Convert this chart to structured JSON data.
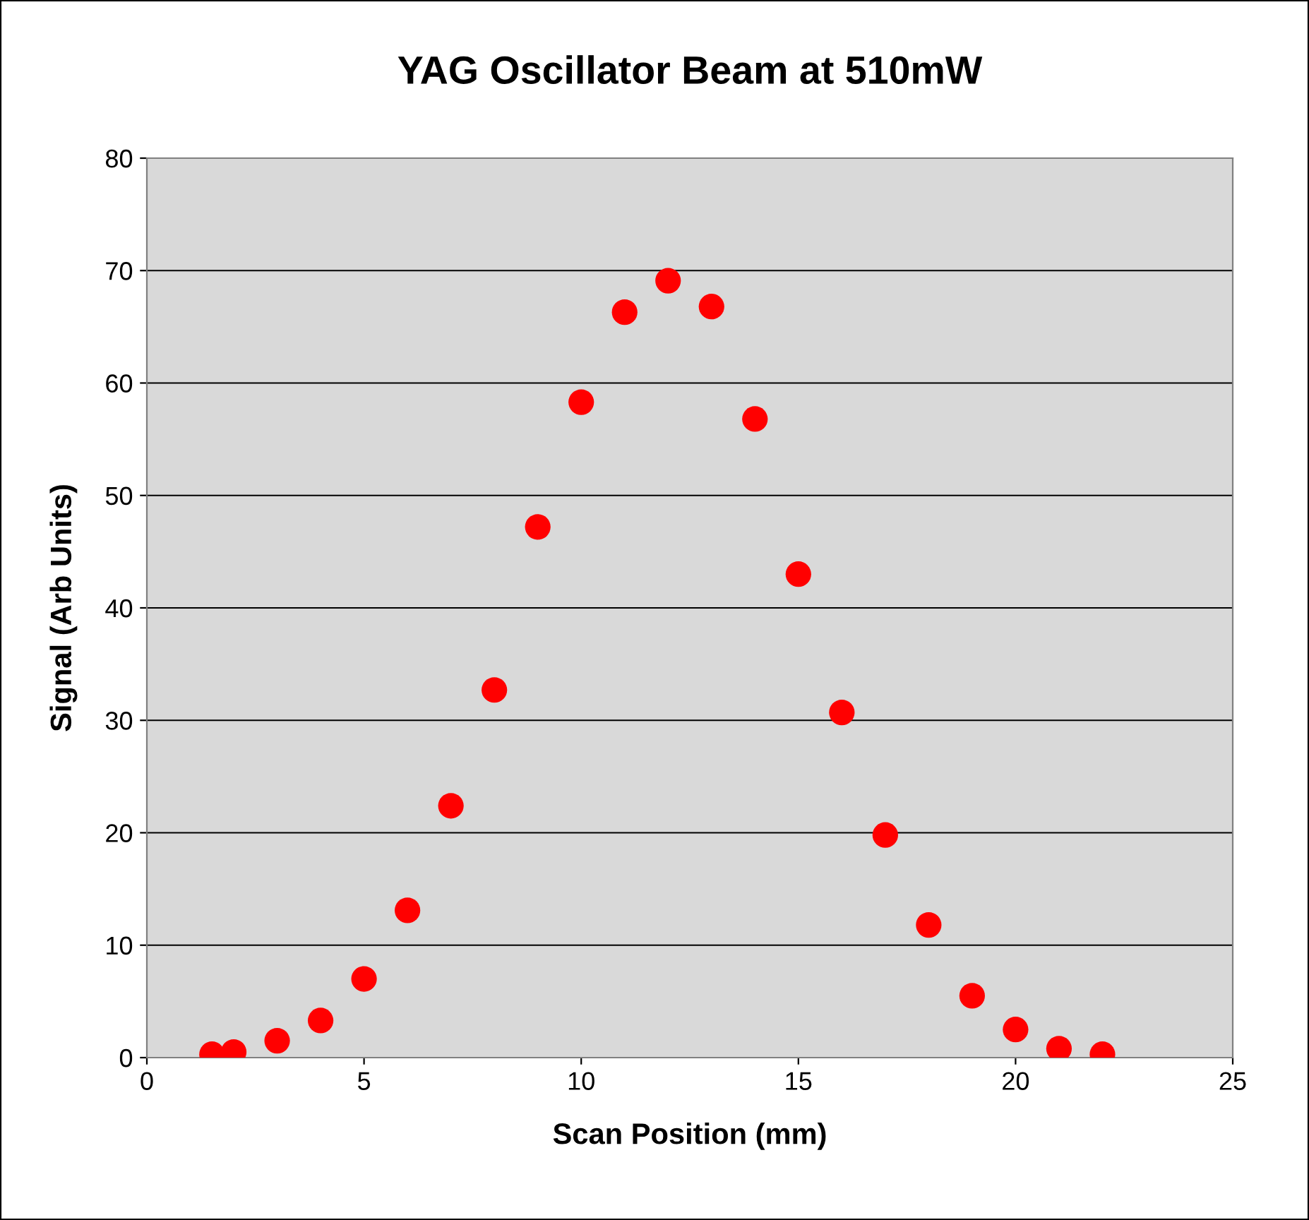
{
  "chart_data": {
    "type": "scatter",
    "title": "YAG Oscillator Beam at 510mW",
    "xlabel": "Scan Position (mm)",
    "ylabel": "Signal (Arb Units)",
    "x": [
      1.5,
      2,
      3,
      4,
      5,
      6,
      7,
      8,
      9,
      10,
      11,
      12,
      13,
      14,
      15,
      16,
      17,
      18,
      19,
      20,
      21,
      22
    ],
    "series": [
      {
        "color": "#ff0000",
        "values": [
          0.3,
          0.5,
          1.5,
          3.3,
          7.0,
          13.1,
          22.4,
          32.7,
          47.2,
          58.3,
          66.3,
          69.1,
          66.8,
          56.8,
          43.0,
          30.7,
          19.8,
          11.8,
          5.5,
          2.5,
          0.8,
          0.3
        ]
      }
    ],
    "xlim": [
      0,
      25
    ],
    "xticks": [
      0,
      5,
      10,
      15,
      20,
      25
    ],
    "ylim": [
      0,
      80
    ],
    "yticks": [
      0,
      10,
      20,
      30,
      40,
      50,
      60,
      70,
      80
    ],
    "grid": "y",
    "marker": "circle",
    "legend": false
  }
}
